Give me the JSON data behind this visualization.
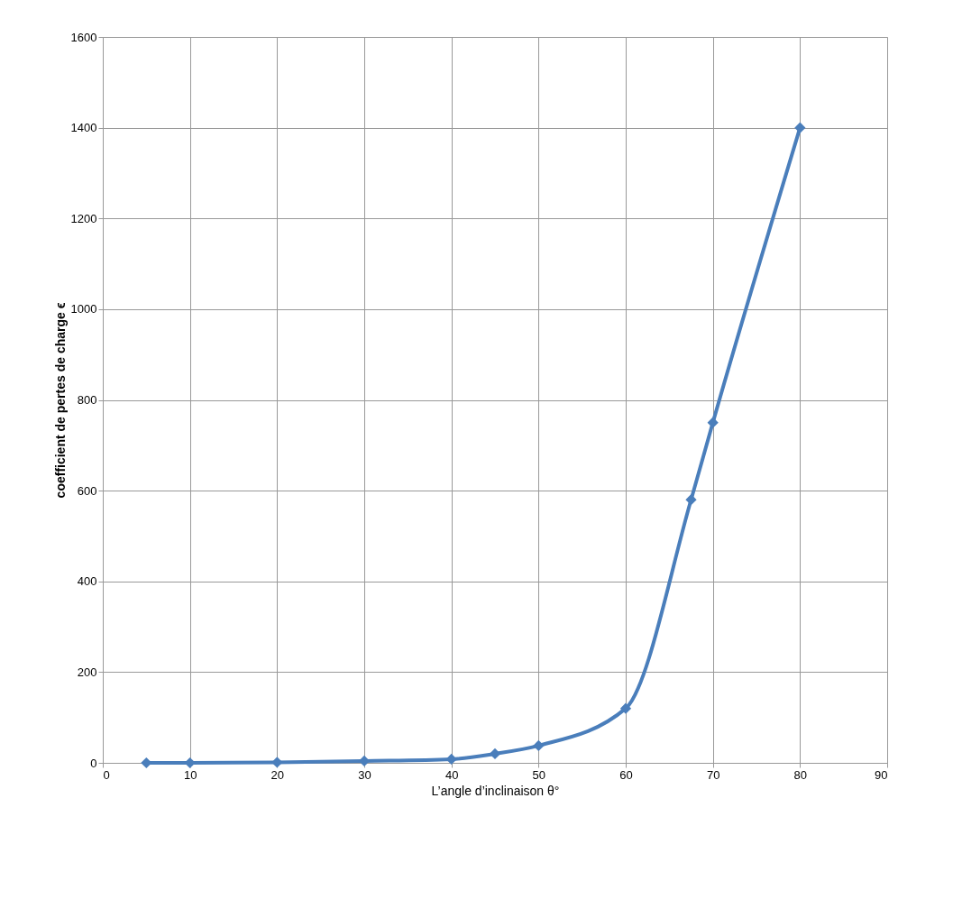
{
  "chart_data": {
    "type": "line",
    "xlabel": "L’angle d’inclinaison θ°",
    "ylabel": "coefficient de pertes de charge ϵ",
    "x": [
      5,
      10,
      20,
      30,
      40,
      45,
      50,
      60,
      67.5,
      70,
      80
    ],
    "series": [
      {
        "color": "#4a7ebb",
        "values": [
          0,
          0,
          1,
          4,
          8,
          20,
          38,
          120,
          580,
          750,
          1400
        ]
      }
    ],
    "xlim": [
      0,
      90
    ],
    "xticks": [
      0,
      10,
      20,
      30,
      40,
      50,
      60,
      70,
      80,
      90
    ],
    "ylim": [
      0,
      1600
    ],
    "yticks": [
      0,
      200,
      400,
      600,
      800,
      1000,
      1200,
      1400,
      1600
    ],
    "grid": true,
    "legend": false,
    "marker": "diamond",
    "line_style": "solid"
  }
}
